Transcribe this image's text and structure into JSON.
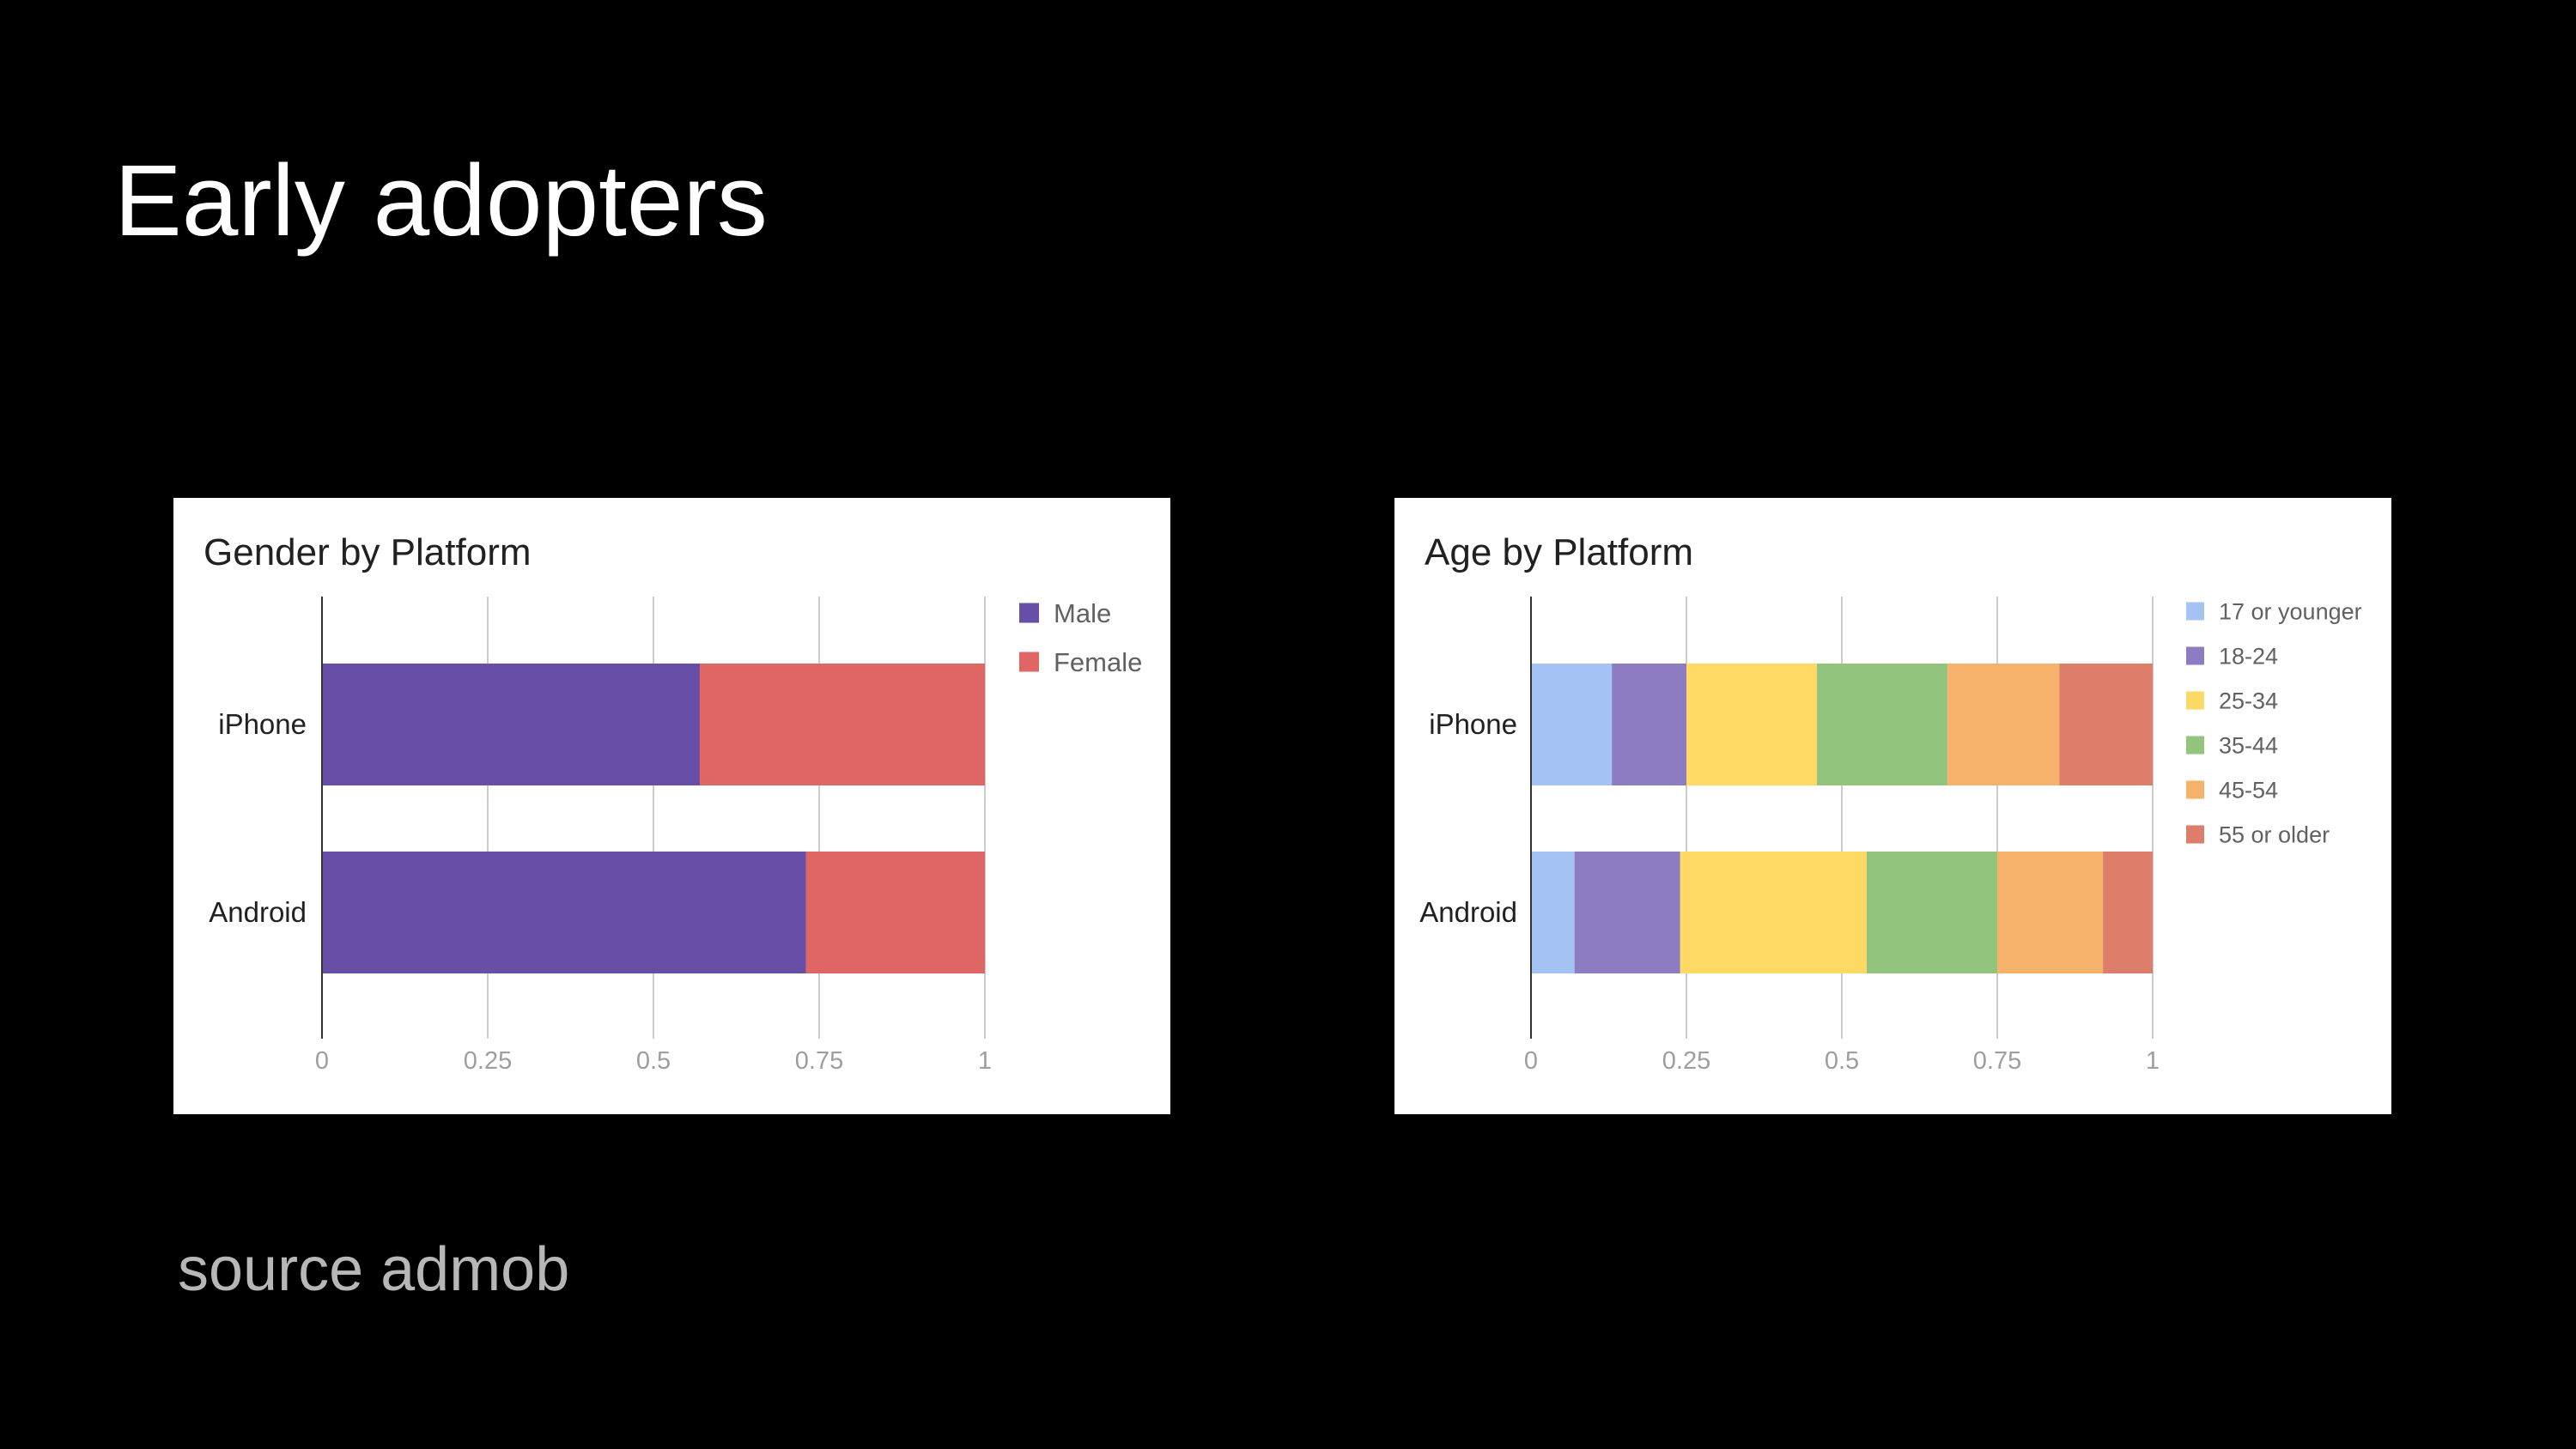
{
  "slide": {
    "title": "Early adopters",
    "footer": "source admob"
  },
  "colors": {
    "background": "#000000",
    "title_text": "#ffffff",
    "footer_text": "#b7b7b7",
    "panel": "#ffffff",
    "axis_tick_text": "#9e9e9e",
    "gridline": "#cccccc"
  },
  "chart_data": [
    {
      "type": "bar",
      "orientation": "horizontal",
      "stacked": true,
      "title": "Gender by Platform",
      "categories": [
        "iPhone",
        "Android"
      ],
      "series": [
        {
          "name": "Male",
          "color": "#674ea7",
          "values": [
            0.57,
            0.73
          ]
        },
        {
          "name": "Female",
          "color": "#e06666",
          "values": [
            0.43,
            0.27
          ]
        }
      ],
      "xlim": [
        0,
        1
      ],
      "xticks": [
        "0",
        "0.25",
        "0.5",
        "0.75",
        "1"
      ],
      "grid": true,
      "legend": "right"
    },
    {
      "type": "bar",
      "orientation": "horizontal",
      "stacked": true,
      "title": "Age by Platform",
      "categories": [
        "iPhone",
        "Android"
      ],
      "series": [
        {
          "name": "17 or younger",
          "color": "#a4c2f4",
          "values": [
            0.13,
            0.07
          ]
        },
        {
          "name": "18-24",
          "color": "#8e7cc3",
          "values": [
            0.12,
            0.17
          ]
        },
        {
          "name": "25-34",
          "color": "#ffd966",
          "values": [
            0.21,
            0.3
          ]
        },
        {
          "name": "35-44",
          "color": "#93c47d",
          "values": [
            0.21,
            0.21
          ]
        },
        {
          "name": "45-54",
          "color": "#f6b26b",
          "values": [
            0.18,
            0.17
          ]
        },
        {
          "name": "55 or older",
          "color": "#dd7e6b",
          "values": [
            0.15,
            0.08
          ]
        }
      ],
      "xlim": [
        0,
        1
      ],
      "xticks": [
        "0",
        "0.25",
        "0.5",
        "0.75",
        "1"
      ],
      "grid": true,
      "legend": "right"
    }
  ]
}
